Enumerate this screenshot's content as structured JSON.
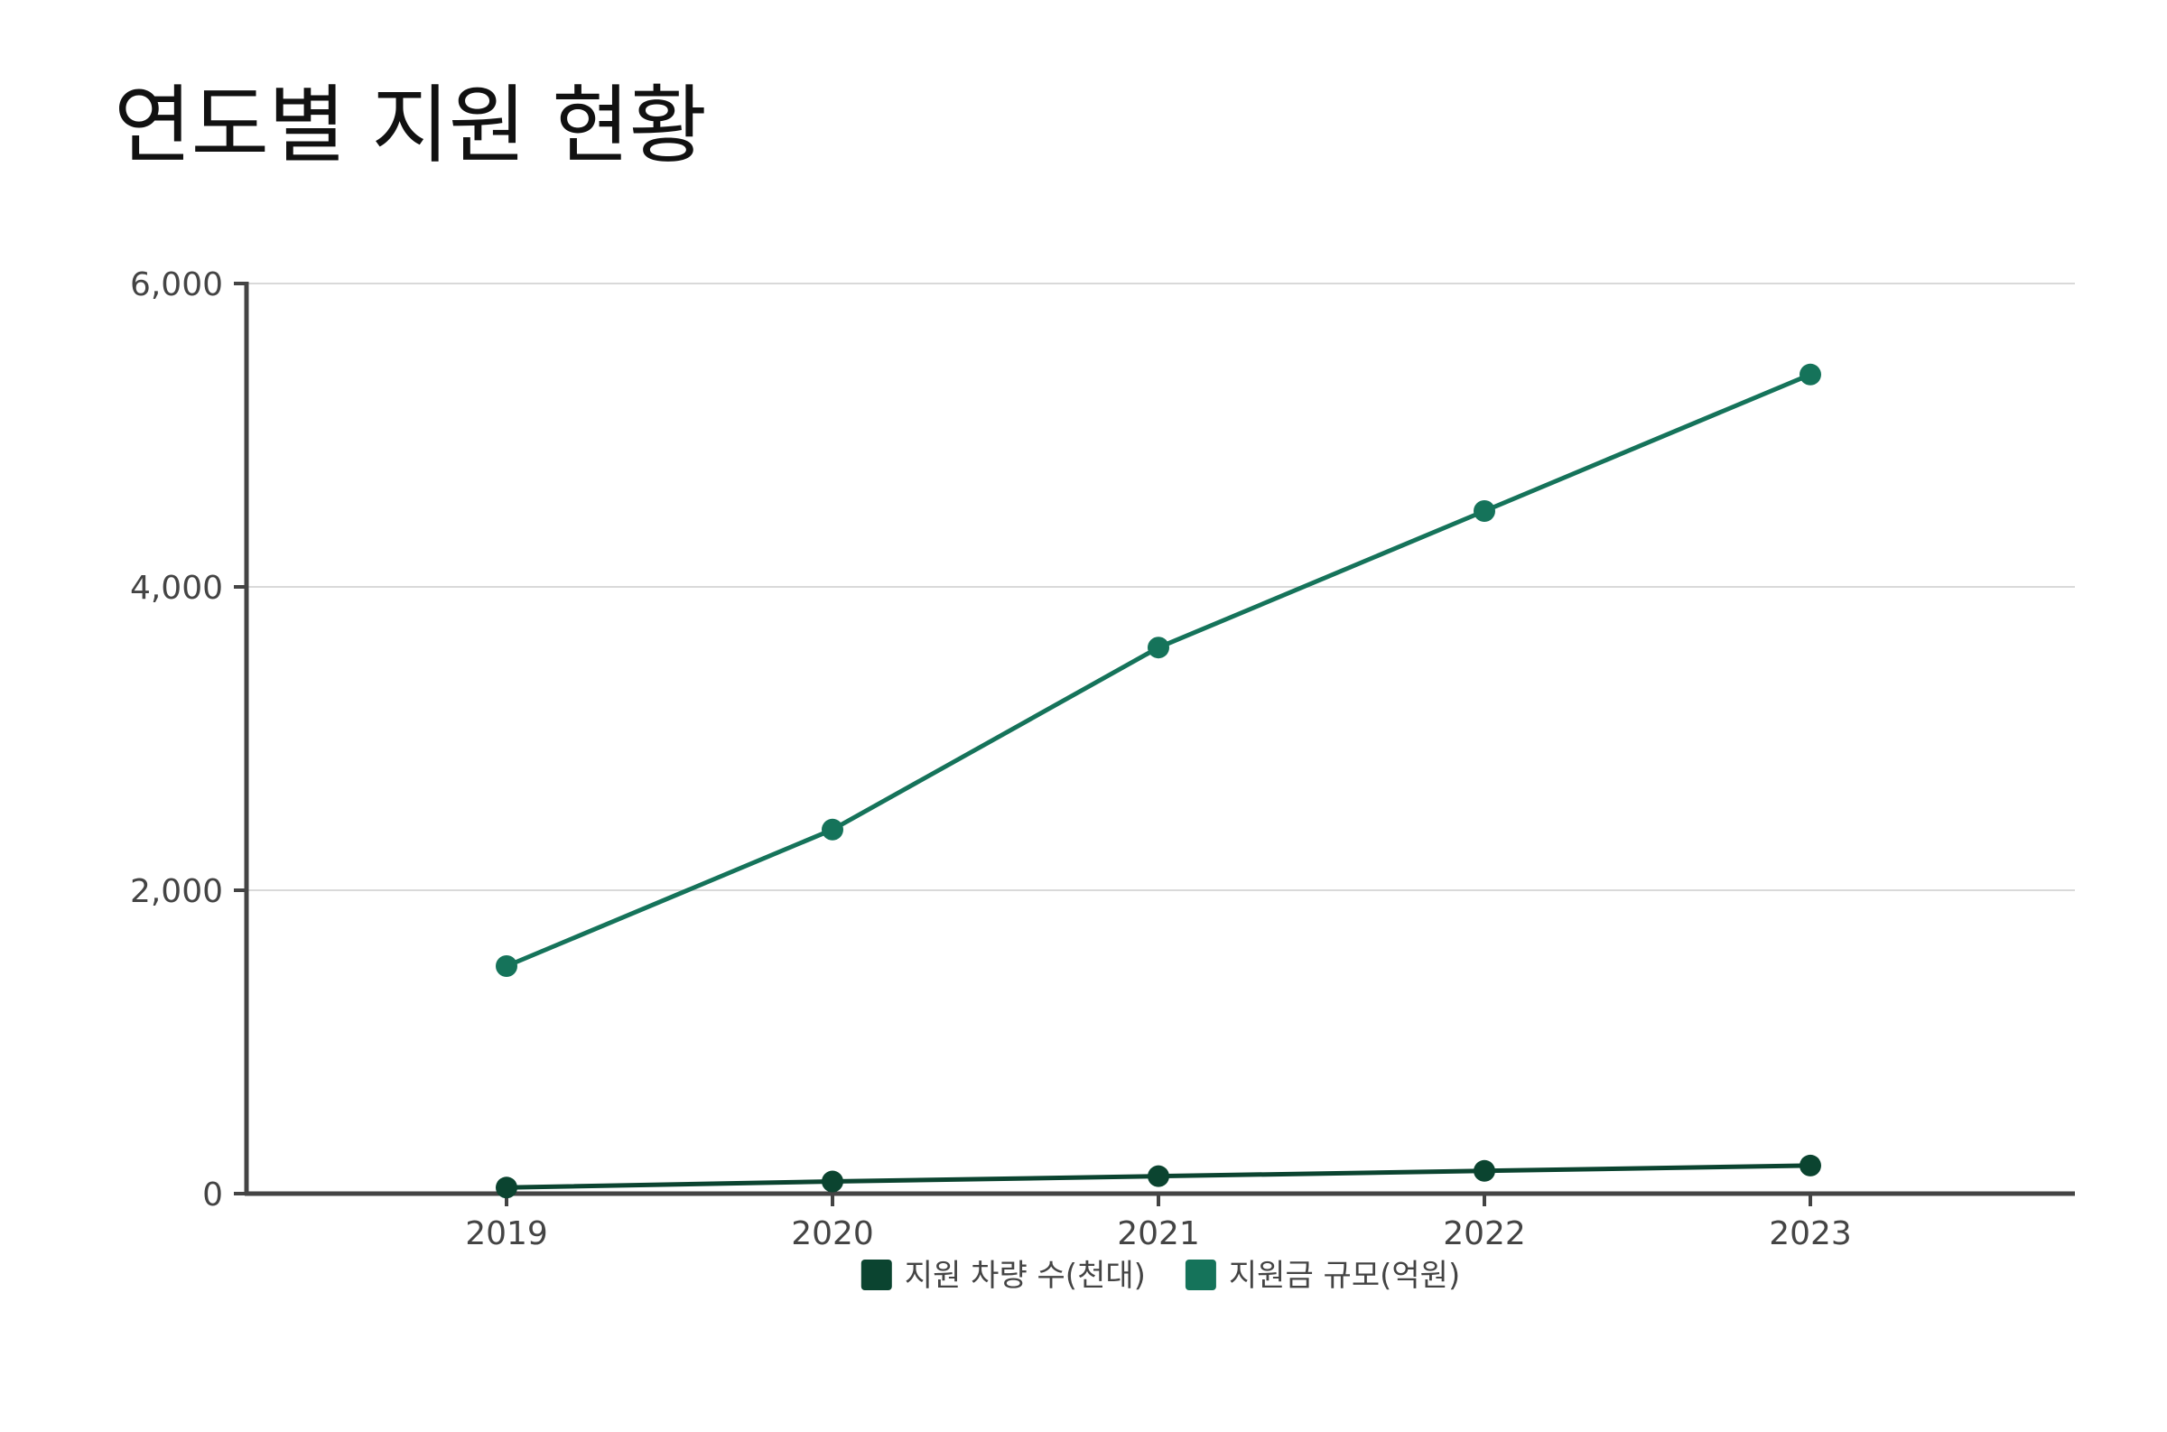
{
  "chart_data": {
    "type": "line",
    "title": "연도별 지원 현황",
    "xlabel": "",
    "ylabel": "",
    "categories": [
      "2019",
      "2020",
      "2021",
      "2022",
      "2023"
    ],
    "series": [
      {
        "name": "지원 차량 수(천대)",
        "color": "#0b4430",
        "values": [
          40,
          80,
          115,
          150,
          185
        ]
      },
      {
        "name": "지원금 규모(억원)",
        "color": "#15735a",
        "values": [
          1500,
          2400,
          3600,
          4500,
          5400
        ]
      }
    ],
    "ylim": [
      0,
      6000
    ],
    "yticks": [
      {
        "value": 0,
        "label": "0"
      },
      {
        "value": 2000,
        "label": "2,000"
      },
      {
        "value": 4000,
        "label": "4,000"
      },
      {
        "value": 6000,
        "label": "6,000"
      }
    ],
    "grid": true,
    "legend": "bottom-center"
  }
}
